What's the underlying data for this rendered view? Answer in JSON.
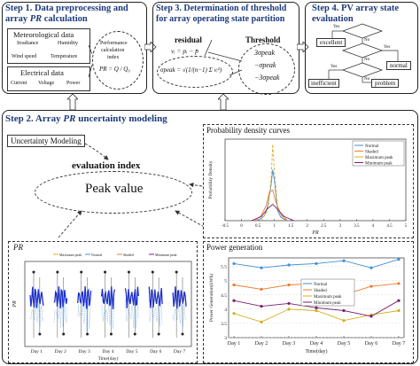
{
  "step1": {
    "title_line1": "Step 1. Data preprocessing and",
    "title_line2_pre": "array ",
    "title_line2_em": "PR",
    "title_line2_post": " calculation",
    "met_title": "Meteorological data",
    "met_items": [
      "Irradiance",
      "Humidity",
      "Wind speed",
      "Temperature"
    ],
    "elec_title": "Electrical data",
    "elec_items": [
      "Current",
      "Voltage",
      "Power"
    ],
    "perf_line1": "Performance",
    "perf_line2": "calculation",
    "perf_line3": "index",
    "perf_formula": "PR = Q / Q₀"
  },
  "step3": {
    "title_line1": "Step 3. Determination of threshold",
    "title_line2": "for array operating state partition",
    "residual_label": "residual",
    "residual_formula": "vᵢ = pᵢ − p̄",
    "sigma_formula": "σpeak = √(1/(n−1) Σ vᵢ²)",
    "threshold_label": "Threshold",
    "thresholds": [
      "3σpeak",
      "−σpeak",
      "−3σpeak"
    ]
  },
  "step4": {
    "title_line1": "Step 4. PV array state",
    "title_line2": "evaluation",
    "excellent": "excellent",
    "normal": "normal",
    "inefficient": "inefficient",
    "problem": "problem",
    "yes": "Yes",
    "no": "No"
  },
  "step2": {
    "title_pre": "Step 2. Array ",
    "title_em": "PR",
    "title_post": " uncertainty modeling",
    "uncertainty_label": "Uncertainty Modeling",
    "eval_index": "evaluation index",
    "peak_value": "Peak value"
  },
  "pdf_panel": {
    "title": "Probability density curves",
    "ylabel": "Probability Density",
    "xlabel": "PR",
    "xticks": [
      "-0.5",
      "0",
      "0.5",
      "1",
      "1.5",
      "2",
      "2.5",
      "3",
      "3.5",
      "4",
      "4.5",
      "5"
    ],
    "legend": [
      "Normal",
      "Shaded",
      "Maximum peak",
      "Minimum peak"
    ]
  },
  "pr_panel": {
    "title": "PR",
    "ylabel": "PR",
    "xlabel": "Time(day)",
    "days": [
      "Day 1",
      "Day 2",
      "Day 3",
      "Day 4",
      "Day 5",
      "Day 6",
      "Day 7"
    ],
    "legend": [
      "Maximum peak",
      "Normal",
      "Shaded",
      "Minimum peak"
    ]
  },
  "power_panel": {
    "title": "Power generation",
    "ylabel": "Power Generation(kWh)",
    "xlabel": "Time(day)",
    "yticks": [
      "3",
      "3.5",
      "4",
      "4.5",
      "5",
      "5.5"
    ],
    "legend": [
      "Normal",
      "Shaded",
      "Maximum peak",
      "Minimum peak"
    ]
  },
  "colors": {
    "title_blue": "#1c3a7a",
    "normal": "#3f8fd6",
    "shaded": "#f07a2a",
    "maxpeak": "#d4b01a",
    "minpeak": "#7a1f6e",
    "pr_blue": "#1a2fd0",
    "pr_light": "#9ec8ef"
  },
  "chart_data": [
    {
      "type": "line",
      "title": "Probability density curves",
      "xlabel": "PR",
      "ylabel": "Probability Density",
      "xlim": [
        -0.5,
        5
      ],
      "series": [
        {
          "name": "Normal",
          "x": [
            0.5,
            0.7,
            0.8,
            0.9,
            0.95,
            1.0,
            1.05,
            1.1,
            1.2,
            1.4
          ],
          "y": [
            0.0,
            0.5,
            1.5,
            3.5,
            5.0,
            4.0,
            2.5,
            1.0,
            0.3,
            0.0
          ]
        },
        {
          "name": "Shaded",
          "x": [
            0.4,
            0.6,
            0.75,
            0.85,
            0.95,
            1.05,
            1.2,
            1.4
          ],
          "y": [
            0.0,
            0.5,
            1.5,
            2.8,
            3.0,
            1.8,
            0.6,
            0.0
          ]
        },
        {
          "name": "Maximum peak",
          "x": [
            0.6,
            0.8,
            0.9,
            0.95,
            1.0,
            1.1,
            1.3
          ],
          "y": [
            0.0,
            1.0,
            4.0,
            7.5,
            5.0,
            1.2,
            0.0
          ]
        },
        {
          "name": "Minimum peak",
          "x": [
            0.3,
            0.6,
            0.8,
            0.95,
            1.1,
            1.3,
            1.6
          ],
          "y": [
            0.0,
            0.4,
            1.2,
            1.6,
            1.1,
            0.4,
            0.0
          ]
        }
      ]
    },
    {
      "type": "line",
      "title": "Power generation",
      "xlabel": "Time(day)",
      "ylabel": "Power Generation(kWh)",
      "categories": [
        "Day 1",
        "Day 2",
        "Day 3",
        "Day 4",
        "Day 5",
        "Day 6",
        "Day 7"
      ],
      "ylim": [
        3,
        5.8
      ],
      "series": [
        {
          "name": "Normal",
          "values": [
            5.6,
            5.45,
            5.55,
            5.6,
            5.7,
            5.45,
            5.75
          ]
        },
        {
          "name": "Shaded",
          "values": [
            4.85,
            4.7,
            4.85,
            4.9,
            4.5,
            4.8,
            4.9
          ]
        },
        {
          "name": "Maximum peak",
          "values": [
            3.85,
            3.55,
            4.0,
            3.95,
            3.6,
            3.8,
            3.95
          ]
        },
        {
          "name": "Minimum peak",
          "values": [
            4.3,
            4.1,
            4.2,
            4.05,
            3.95,
            3.75,
            4.3
          ]
        }
      ]
    }
  ]
}
